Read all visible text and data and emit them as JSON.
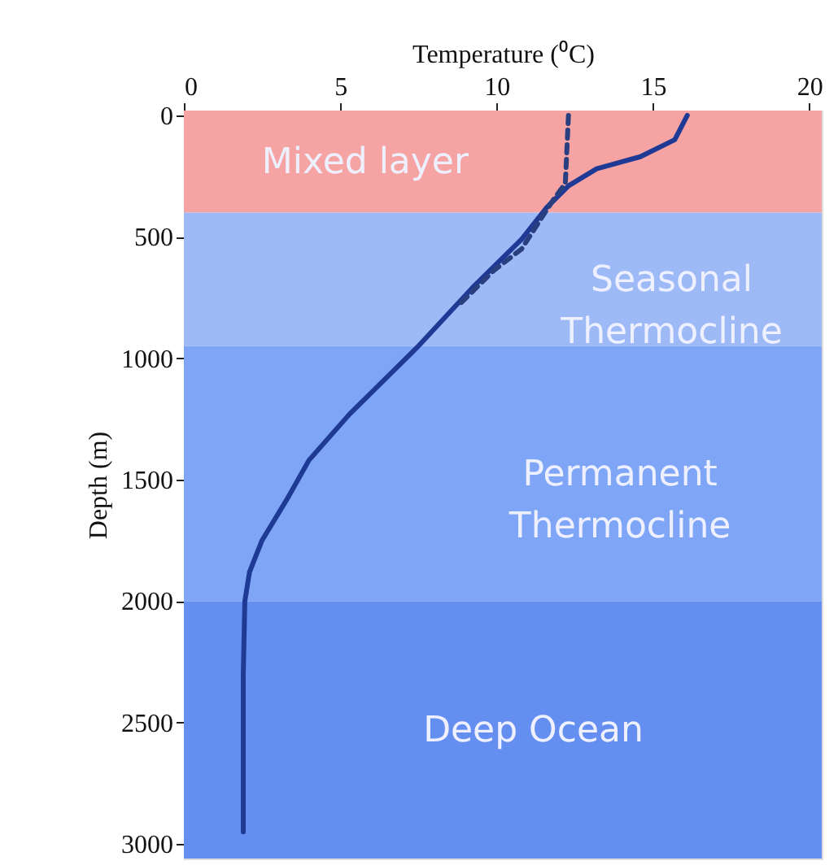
{
  "chart_data": {
    "type": "line",
    "xlabel": "Temperature (⁰C)",
    "ylabel": "Depth (m)",
    "xlim": [
      0,
      20.4
    ],
    "xticks": [
      0,
      5,
      10,
      15,
      20
    ],
    "ylim": [
      3060,
      -20
    ],
    "yticks": [
      0,
      500,
      1000,
      1500,
      2000,
      2500,
      3000
    ],
    "series": [
      {
        "color": "#1f3a94",
        "line_style": "solid",
        "x": [
          16.1,
          15.7,
          14.6,
          13.2,
          12.3,
          11.6,
          10.8,
          9.3,
          7.5,
          5.3,
          4.0,
          3.3,
          2.5,
          2.1,
          1.95,
          1.9,
          1.9
        ],
        "values": [
          0,
          100,
          170,
          220,
          290,
          380,
          510,
          700,
          950,
          1230,
          1420,
          1580,
          1750,
          1880,
          2000,
          2300,
          2950
        ]
      },
      {
        "color": "#2a3f80",
        "line_style": "dashed",
        "x": [
          12.3,
          12.2,
          11.8,
          10.8,
          9.9,
          8.8
        ],
        "values": [
          0,
          280,
          350,
          550,
          640,
          780
        ]
      }
    ],
    "bands": [
      {
        "axis": "y",
        "from": -20,
        "to": 400,
        "color": "#f5a3a3",
        "label": "Mixed layer"
      },
      {
        "axis": "y",
        "from": 400,
        "to": 950,
        "color": "#9dbaf7",
        "label": "Seasonal Thermocline"
      },
      {
        "axis": "y",
        "from": 950,
        "to": 2000,
        "color": "#7fa6f6",
        "label": "Permanent Thermocline"
      },
      {
        "axis": "y",
        "from": 2000,
        "to": 3060,
        "color": "#648ef0",
        "label": "Deep Ocean"
      }
    ],
    "grid": false
  }
}
